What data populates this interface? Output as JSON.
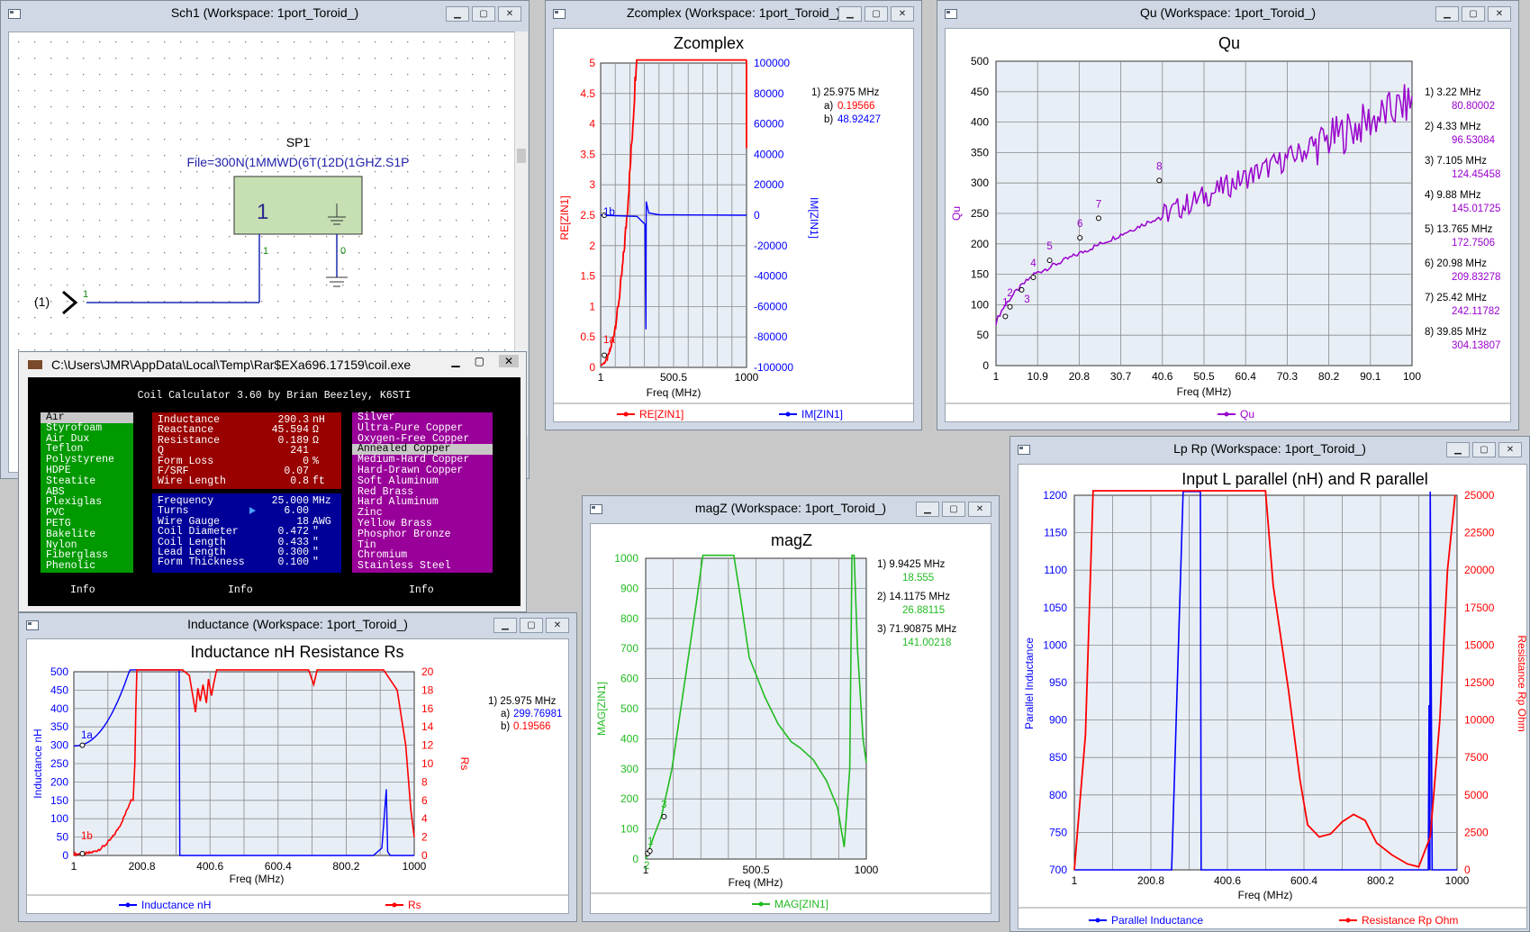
{
  "windows": {
    "sch1": {
      "title": "Sch1  (Workspace: 1port_Toroid_)",
      "component": "SP1",
      "file": "File=300N(1MMWD(6T(12D(1GHZ.S1P",
      "port_num": "1",
      "pin1": "1",
      "pin0": "0",
      "wire_label": "1",
      "port_label": "(1)"
    },
    "zcomplex": {
      "title": "Zcomplex  (Workspace: 1port_Toroid_)"
    },
    "qu": {
      "title": "Qu  (Workspace: 1port_Toroid_)"
    },
    "magz": {
      "title": "magZ  (Workspace: 1port_Toroid_)"
    },
    "lprp": {
      "title": "Lp Rp  (Workspace: 1port_Toroid_)"
    },
    "inductance": {
      "title": "Inductance  (Workspace: 1port_Toroid_)"
    },
    "coil": {
      "title": "C:\\Users\\JMR\\AppData\\Local\\Temp\\Rar$EXa696.17159\\coil.exe"
    }
  },
  "window_buttons": {
    "minimize": "▁",
    "maximize": "▢",
    "close": "✕"
  },
  "coil_app": {
    "header": "Coil Calculator 3.60 by Brian Beezley, K6STI",
    "forms": [
      "Air",
      "Styrofoam",
      "Air Dux",
      "Teflon",
      "Polystyrene",
      "HDPE",
      "Steatite",
      "ABS",
      "Plexiglas",
      "PVC",
      "PETG",
      "Bakelite",
      "Nylon",
      "Fiberglass",
      "Phenolic"
    ],
    "selected_form": "Air",
    "results": [
      {
        "label": "Inductance",
        "value": "290.3",
        "unit": "nH"
      },
      {
        "label": "Reactance",
        "value": "45.594",
        "unit": "Ω"
      },
      {
        "label": "Resistance",
        "value": "0.189",
        "unit": "Ω"
      },
      {
        "label": "Q",
        "value": "241",
        "unit": ""
      },
      {
        "label": "Form Loss",
        "value": "0",
        "unit": "%"
      },
      {
        "label": "F/SRF",
        "value": "0.07",
        "unit": ""
      },
      {
        "label": "Wire Length",
        "value": "0.8",
        "unit": "ft"
      }
    ],
    "inputs": [
      {
        "label": "Frequency",
        "value": "25.000",
        "unit": "MHz"
      },
      {
        "label": "Turns",
        "value": "6.00",
        "unit": ""
      },
      {
        "label": "Wire Gauge",
        "value": "18",
        "unit": "AWG"
      },
      {
        "label": "Coil Diameter",
        "value": "0.472",
        "unit": "\""
      },
      {
        "label": "Coil Length",
        "value": "0.433",
        "unit": "\""
      },
      {
        "label": "Lead Length",
        "value": "0.300",
        "unit": "\""
      },
      {
        "label": "Form Thickness",
        "value": "0.100",
        "unit": "\""
      }
    ],
    "materials": [
      "Silver",
      "Ultra-Pure Copper",
      "Oxygen-Free Copper",
      "Annealed Copper",
      "Medium-Hard Copper",
      "Hard-Drawn Copper",
      "Soft Aluminum",
      "Red Brass",
      "Hard Aluminum",
      "Zinc",
      "Yellow Brass",
      "Phosphor Bronze",
      "Tin",
      "Chromium",
      "Stainless Steel"
    ],
    "selected_material": "Annealed Copper",
    "info_labels": [
      "Info",
      "Info",
      "Info"
    ]
  },
  "charts": {
    "zcomplex": {
      "title": "Zcomplex",
      "xlabel": "Freq (MHz)",
      "ylabel_left": "RE[ZIN1]",
      "ylabel_right": "IM[ZIN1]",
      "xticks": [
        "1",
        "500.5",
        "1000"
      ],
      "yticks_left": [
        "0",
        "0.5",
        "1",
        "1.5",
        "2",
        "2.5",
        "3",
        "3.5",
        "4",
        "4.5",
        "5"
      ],
      "yticks_right": [
        "-100000",
        "-80000",
        "-60000",
        "-40000",
        "-20000",
        "0",
        "20000",
        "40000",
        "60000",
        "80000",
        "100000"
      ],
      "legend": [
        "RE[ZIN1]",
        "IM[ZIN1]"
      ],
      "readout": {
        "head": "1) 25.975 MHz",
        "a_label": "a)",
        "a": "0.19566",
        "b_label": "b)",
        "b": "48.92427"
      },
      "markers": [
        "1b",
        "1a"
      ]
    },
    "qu": {
      "title": "Qu",
      "xlabel": "Freq (MHz)",
      "ylabel": "Qu",
      "xticks": [
        "1",
        "10.9",
        "20.8",
        "30.7",
        "40.6",
        "50.5",
        "60.4",
        "70.3",
        "80.2",
        "90.1",
        "100"
      ],
      "yticks": [
        "0",
        "50",
        "100",
        "150",
        "200",
        "250",
        "300",
        "350",
        "400",
        "450",
        "500"
      ],
      "legend": [
        "Qu"
      ],
      "readouts": [
        {
          "head": "1) 3.22 MHz",
          "val": "80.80002"
        },
        {
          "head": "2) 4.33 MHz",
          "val": "96.53084"
        },
        {
          "head": "3) 7.105 MHz",
          "val": "124.45458"
        },
        {
          "head": "4) 9.88 MHz",
          "val": "145.01725"
        },
        {
          "head": "5) 13.765 MHz",
          "val": "172.7506"
        },
        {
          "head": "6) 20.98 MHz",
          "val": "209.83278"
        },
        {
          "head": "7) 25.42 MHz",
          "val": "242.11782"
        },
        {
          "head": "8) 39.85 MHz",
          "val": "304.13807"
        }
      ],
      "marker_nums": [
        "1",
        "2",
        "3",
        "4",
        "5",
        "6",
        "7",
        "8"
      ]
    },
    "magz": {
      "title": "magZ",
      "xlabel": "Freq (MHz)",
      "ylabel": "MAG[ZIN1]",
      "xticks": [
        "1",
        "500.5",
        "1000"
      ],
      "yticks": [
        "0",
        "100",
        "200",
        "300",
        "400",
        "500",
        "600",
        "700",
        "800",
        "900",
        "1000"
      ],
      "legend": [
        "MAG[ZIN1]"
      ],
      "readouts": [
        {
          "head": "1) 9.9425 MHz",
          "val": "18.555"
        },
        {
          "head": "2) 14.1175 MHz",
          "val": "26.88115"
        },
        {
          "head": "3) 71.90875 MHz",
          "val": "141.00218"
        }
      ],
      "marker_nums": [
        "1",
        "2",
        "3"
      ]
    },
    "inductance": {
      "title": "Inductance nH   Resistance Rs",
      "xlabel": "Freq (MHz)",
      "ylabel_left": "Inductance nH",
      "ylabel_right": "Rs",
      "xticks": [
        "1",
        "200.8",
        "400.6",
        "600.4",
        "800.2",
        "1000"
      ],
      "yticks_left": [
        "0",
        "50",
        "100",
        "150",
        "200",
        "250",
        "300",
        "350",
        "400",
        "450",
        "500"
      ],
      "yticks_right": [
        "0",
        "2",
        "4",
        "6",
        "8",
        "10",
        "12",
        "14",
        "16",
        "18",
        "20"
      ],
      "legend": [
        "Inductance nH",
        "Rs"
      ],
      "readout": {
        "head": "1) 25.975 MHz",
        "a_label": "a)",
        "a": "299.76981",
        "b_label": "b)",
        "b": "0.19566"
      },
      "markers": [
        "1a",
        "1b"
      ]
    },
    "lprp": {
      "title": "Input  L parallel (nH)    and     R parallel",
      "xlabel": "Freq (MHz)",
      "ylabel_left": "Parallel Inductance",
      "ylabel_right": "Resistance Rp Ohm",
      "xticks": [
        "1",
        "200.8",
        "400.6",
        "600.4",
        "800.2",
        "1000"
      ],
      "yticks_left": [
        "700",
        "750",
        "800",
        "850",
        "900",
        "950",
        "1000",
        "1050",
        "1100",
        "1150",
        "1200"
      ],
      "yticks_right": [
        "0",
        "2500",
        "5000",
        "7500",
        "10000",
        "12500",
        "15000",
        "17500",
        "20000",
        "22500",
        "25000"
      ],
      "legend": [
        "Parallel Inductance",
        "Resistance Rp Ohm"
      ]
    }
  },
  "colors": {
    "red": "#ff0000",
    "blue": "#0000ff",
    "purple": "#9900cc",
    "green": "#22bb22",
    "grid": "#808080",
    "plotbg": "#e8eef6"
  }
}
